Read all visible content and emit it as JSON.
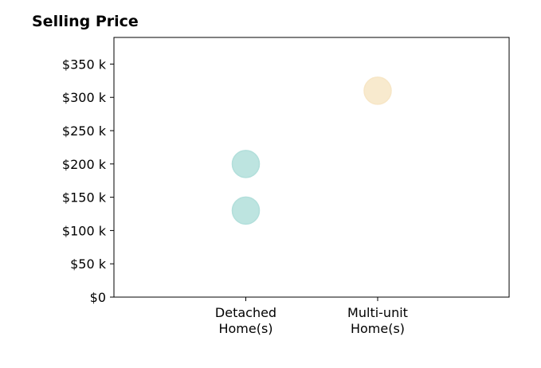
{
  "chart_data": {
    "type": "scatter",
    "title": "Selling Price",
    "xlabel": "",
    "ylabel": "",
    "categories": [
      "Detached Home(s)",
      "Multi-unit Home(s)"
    ],
    "category_lines": [
      [
        "Detached",
        "Home(s)"
      ],
      [
        "Multi-unit",
        "Home(s)"
      ]
    ],
    "points": [
      {
        "category": "Detached Home(s)",
        "value": 200000,
        "color": "#b2dfdb"
      },
      {
        "category": "Detached Home(s)",
        "value": 130000,
        "color": "#b2dfdb"
      },
      {
        "category": "Multi-unit Home(s)",
        "value": 310000,
        "color": "#f7e6c6"
      }
    ],
    "ylim": [
      0,
      390000
    ],
    "yticks": [
      0,
      50000,
      100000,
      150000,
      200000,
      250000,
      300000,
      350000
    ],
    "ytick_labels": [
      "$0",
      "$50 k",
      "$100 k",
      "$150 k",
      "$200 k",
      "$250 k",
      "$300 k",
      "$350 k"
    ],
    "grid": false,
    "legend": "none"
  }
}
